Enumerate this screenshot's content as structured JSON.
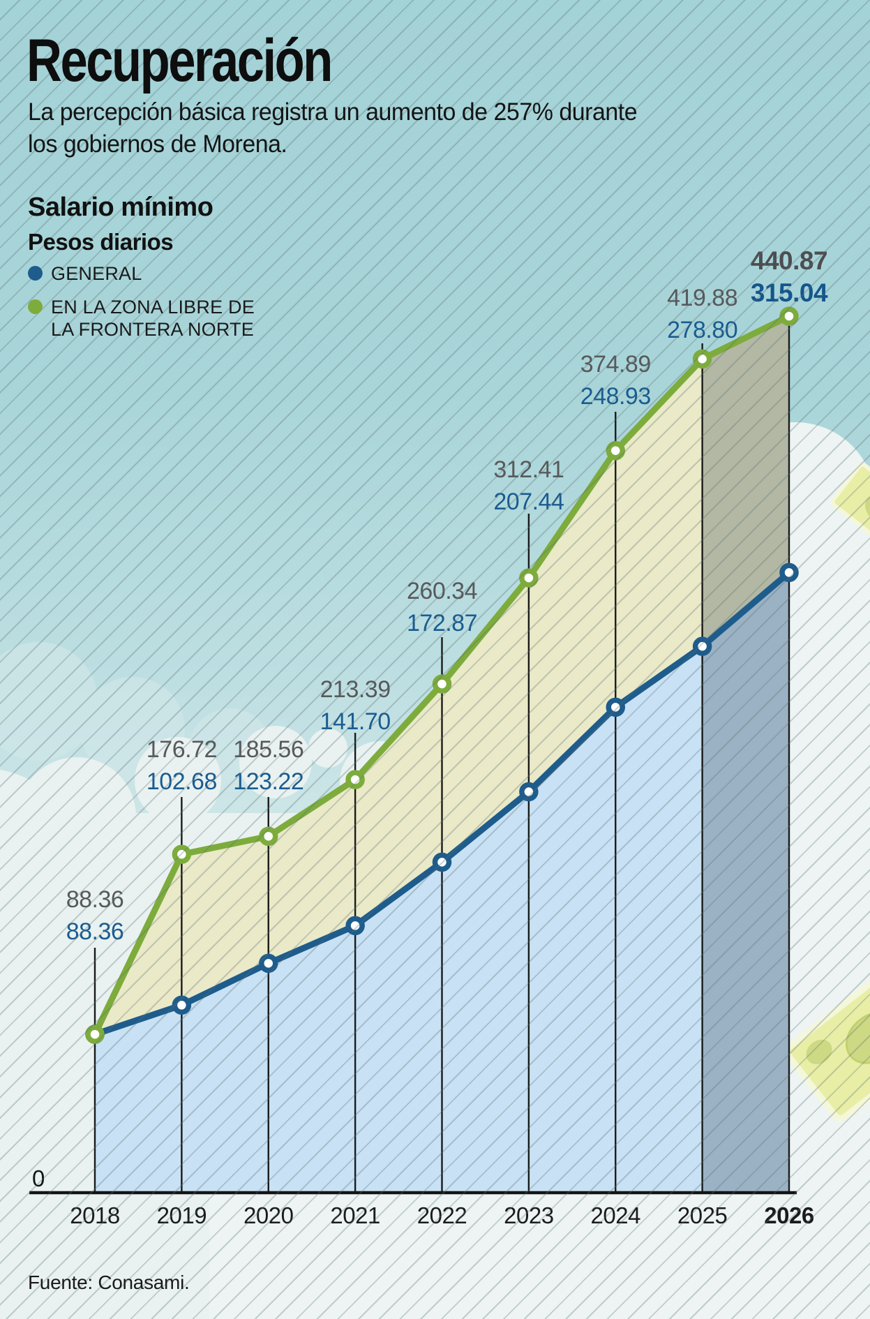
{
  "header": {
    "title": "Recuperación",
    "subtitle": "La percepción básica registra un aumento de 257% durante los gobiernos de Morena."
  },
  "panel": {
    "heading": "Salario mínimo",
    "subheading": "Pesos diarios",
    "legend": [
      {
        "label": "GENERAL",
        "color": "#1e5c8c"
      },
      {
        "label": "EN LA ZONA LIBRE DE LA FRONTERA NORTE",
        "color": "#7dac3c"
      }
    ]
  },
  "chart_data": {
    "type": "line",
    "title": "Salario mínimo",
    "ylabel": "Pesos diarios",
    "categories": [
      "2018",
      "2019",
      "2020",
      "2021",
      "2022",
      "2023",
      "2024",
      "2025",
      "2026"
    ],
    "series": [
      {
        "name": "GENERAL",
        "color": "#1e5c8c",
        "label_color": "#1a5c90",
        "area_color": "#c8e1f4",
        "values": [
          "88.36",
          "102.68",
          "123.22",
          "141.70",
          "172.87",
          "207.44",
          "248.93",
          "278.80",
          "315.04"
        ]
      },
      {
        "name": "EN LA ZONA LIBRE DE LA FRONTERA NORTE",
        "color": "#7dac3c",
        "label_color": "#58595b",
        "area_color": "#eae9c8",
        "values": [
          "88.36",
          "176.72",
          "185.56",
          "213.39",
          "260.34",
          "312.41",
          "374.89",
          "419.88",
          "440.87"
        ]
      }
    ],
    "ylim": [
      0,
      460
    ],
    "baseline_label": "0",
    "grid": false,
    "legend_position": "top-left",
    "highlight_last_column": true,
    "bold_category": "2026"
  },
  "footer": {
    "source": "Fuente: Conasami."
  },
  "decor": {
    "banknote_color": "#e9eea6",
    "banknote_trim": "#f4f7da",
    "banknote_ink": "#cdd983"
  }
}
